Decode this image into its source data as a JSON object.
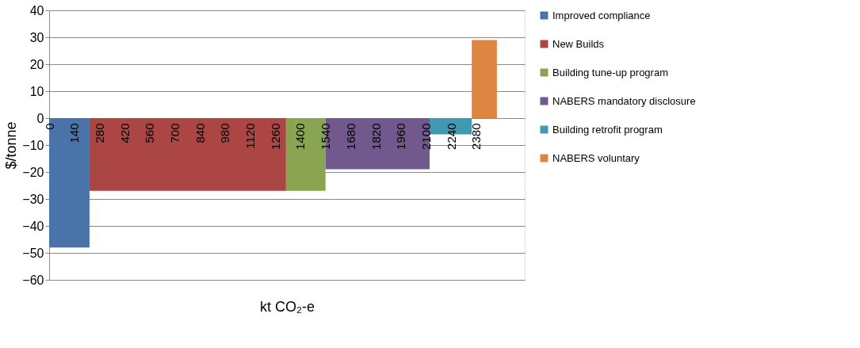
{
  "chart_data": {
    "type": "area",
    "xlabel": "kt CO₂-e",
    "ylabel": "$/tonne",
    "xlim": [
      0,
      2650
    ],
    "xticks": [
      0,
      140,
      280,
      420,
      560,
      700,
      840,
      980,
      1120,
      1260,
      1400,
      1540,
      1680,
      1820,
      1960,
      2100,
      2240,
      2380
    ],
    "ylim": [
      -60,
      40
    ],
    "yticks": [
      -60,
      -50,
      -40,
      -30,
      -20,
      -10,
      0,
      10,
      20,
      30,
      40
    ],
    "grid": "y",
    "legend": "right",
    "series": [
      {
        "name": "Improved compliance",
        "color": "#4a74a9",
        "x": [
          0,
          225
        ],
        "values": [
          -48,
          -48
        ]
      },
      {
        "name": "New Builds",
        "color": "#ab4645",
        "x": [
          225,
          1320
        ],
        "values": [
          -27,
          -27
        ]
      },
      {
        "name": "Building tune-up program",
        "color": "#8aa551",
        "x": [
          1320,
          1540
        ],
        "values": [
          -27,
          -27
        ]
      },
      {
        "name": "NABERS mandatory disclosure",
        "color": "#71598e",
        "x": [
          1540,
          2120
        ],
        "values": [
          -19,
          -19
        ]
      },
      {
        "name": "Building retrofit program",
        "color": "#4198b0",
        "x": [
          2120,
          2355
        ],
        "values": [
          -6,
          -6
        ]
      },
      {
        "name": "NABERS voluntary",
        "color": "#de8541",
        "x": [
          2355,
          2495
        ],
        "values": [
          29,
          29
        ]
      }
    ]
  }
}
